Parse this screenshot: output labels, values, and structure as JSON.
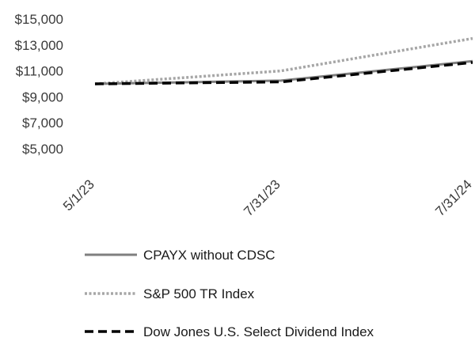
{
  "chart_data": {
    "type": "line",
    "x": [
      "5/1/23",
      "7/31/23",
      "7/31/24"
    ],
    "ylim": [
      5000,
      15000
    ],
    "y_ticks": [
      "$15,000",
      "$13,000",
      "$11,000",
      "$9,000",
      "$7,000",
      "$5,000"
    ],
    "y_tick_values": [
      15000,
      13000,
      11000,
      9000,
      7000,
      5000
    ],
    "grid": false,
    "legend_position": "bottom",
    "series": [
      {
        "name": "CPAYX without CDSC",
        "values": [
          10000,
          10250,
          11750
        ],
        "color": "#7f7f7f",
        "style": "solid"
      },
      {
        "name": "S&P 500 TR Index",
        "values": [
          10000,
          11000,
          13500
        ],
        "color": "#a6a6a6",
        "style": "dotted"
      },
      {
        "name": "Dow Jones U.S. Select Dividend Index",
        "values": [
          10000,
          10150,
          11650
        ],
        "color": "#000000",
        "style": "dashed"
      }
    ]
  }
}
